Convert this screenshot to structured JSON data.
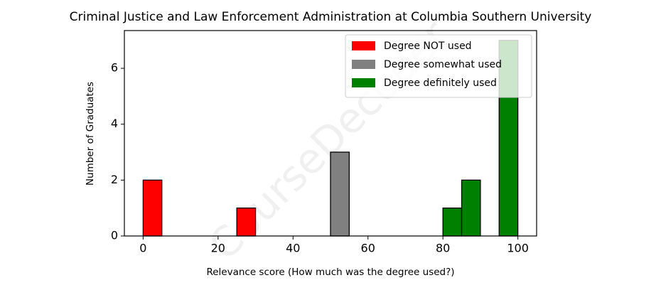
{
  "chart_data": {
    "type": "histogram",
    "title": "Criminal Justice and Law Enforcement Administration at Columbia Southern University",
    "xlabel": "Relevance score (How much was the degree used?)",
    "ylabel": "Number of Graduates",
    "watermark": "CourseDecoder",
    "bins": [
      0,
      5,
      10,
      15,
      20,
      25,
      30,
      35,
      40,
      45,
      50,
      55,
      60,
      65,
      70,
      75,
      80,
      85,
      90,
      95,
      100
    ],
    "series": [
      {
        "name": "Degree NOT used",
        "color": "#ff0000",
        "values": [
          2,
          0,
          0,
          0,
          0,
          1,
          0,
          0,
          0,
          0,
          0,
          0,
          0,
          0,
          0,
          0,
          0,
          0,
          0,
          0
        ]
      },
      {
        "name": "Degree somewhat used",
        "color": "#808080",
        "values": [
          0,
          0,
          0,
          0,
          0,
          0,
          0,
          0,
          0,
          0,
          3,
          0,
          0,
          0,
          0,
          0,
          0,
          0,
          0,
          0
        ]
      },
      {
        "name": "Degree definitely used",
        "color": "#008000",
        "values": [
          0,
          0,
          0,
          0,
          0,
          0,
          0,
          0,
          0,
          0,
          0,
          0,
          0,
          0,
          0,
          0,
          1,
          2,
          0,
          7
        ]
      }
    ],
    "xlim": [
      -5,
      105
    ],
    "ylim": [
      0,
      7.35
    ],
    "xticks": [
      0,
      20,
      40,
      60,
      80,
      100
    ],
    "yticks": [
      0,
      2,
      4,
      6
    ],
    "legend": "upper right"
  }
}
